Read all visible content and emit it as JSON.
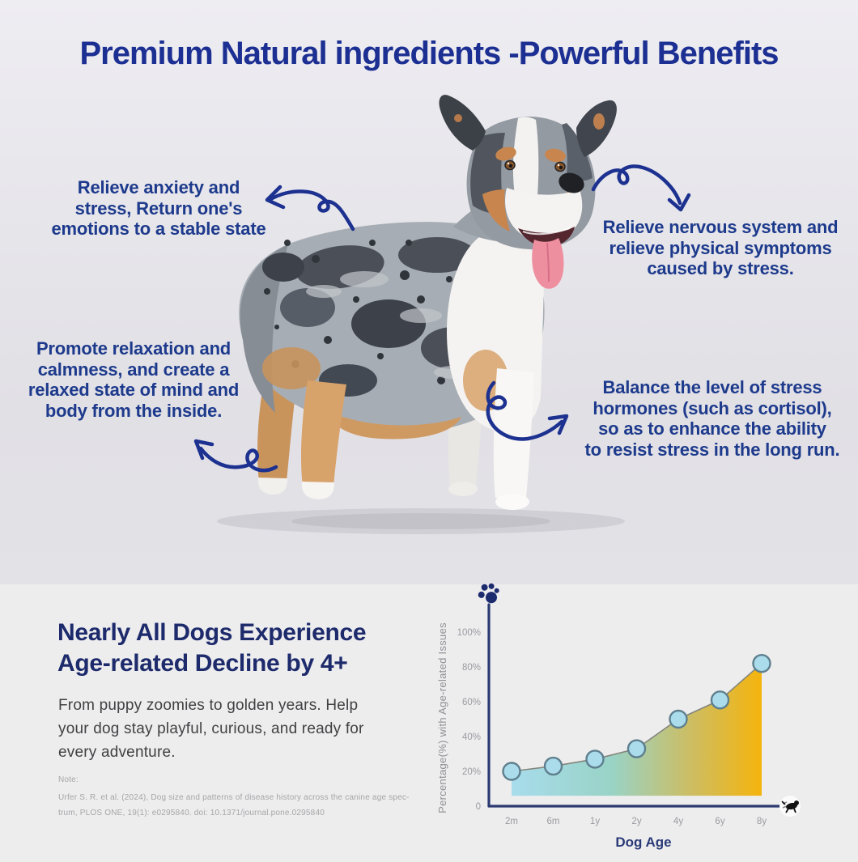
{
  "title": "Premium Natural ingredients -Powerful Benefits",
  "colors": {
    "accent_navy": "#1c2f92",
    "callout_navy": "#1d3a8c",
    "heading_navy": "#1d2a6b",
    "top_background": "#e4e3e8",
    "bottom_background": "#ededee"
  },
  "callouts": [
    {
      "text": "Relieve anxiety and\nstress, Return one's\nemotions to a stable state"
    },
    {
      "text": "Relieve nervous system and\nrelieve physical symptoms\ncaused by stress."
    },
    {
      "text": "Promote relaxation and\ncalmness, and create a\nrelaxed state of mind and\nbody from the inside."
    },
    {
      "text": "Balance the level of stress\nhormones (such as cortisol),\nso as to enhance the ability\nto resist stress in the long run."
    }
  ],
  "bottom": {
    "heading": "Nearly All Dogs Experience\nAge-related Decline by 4+",
    "body": "From puppy zoomies to golden years. Help\nyour dog stay playful, curious, and ready for\nevery adventure.",
    "note_label": "Note:",
    "note": "Urfer S. R. et al. (2024), Dog size and patterns of disease history across the canine age spec-\ntrum, PLOS ONE, 19(1): e0295840. doi: 10.1371/journal.pone.0295840"
  },
  "chart_data": {
    "type": "area",
    "categories": [
      "2m",
      "6m",
      "1y",
      "2y",
      "4y",
      "6y",
      "8y"
    ],
    "values": [
      20,
      23,
      27,
      33,
      50,
      61,
      82
    ],
    "title": "",
    "xlabel": "Dog Age",
    "ylabel": "Percentage(%) with Age-related Issues",
    "ylim": [
      0,
      100
    ],
    "yticks": [
      {
        "value": 0,
        "label": "0"
      },
      {
        "value": 20,
        "label": "20%"
      },
      {
        "value": 40,
        "label": "40%"
      },
      {
        "value": 60,
        "label": "60%"
      },
      {
        "value": 80,
        "label": "80%"
      },
      {
        "value": 100,
        "label": "100%"
      }
    ],
    "area_baseline": 6,
    "grid": false,
    "legend": "none",
    "colors": {
      "gradient": [
        {
          "offset": 0,
          "color": "#a8dcec"
        },
        {
          "offset": 0.4,
          "color": "#99d3c6"
        },
        {
          "offset": 0.72,
          "color": "#cdbd62"
        },
        {
          "offset": 1,
          "color": "#f5b40d"
        }
      ],
      "line": "#84857b",
      "point_fill": "#abdcec",
      "point_stroke": "#5e7f8e",
      "axis": "#2c3a72",
      "tick": "#9b9ba1",
      "axis_label": "#909095",
      "xlabel_color": "#2a3a78"
    }
  }
}
